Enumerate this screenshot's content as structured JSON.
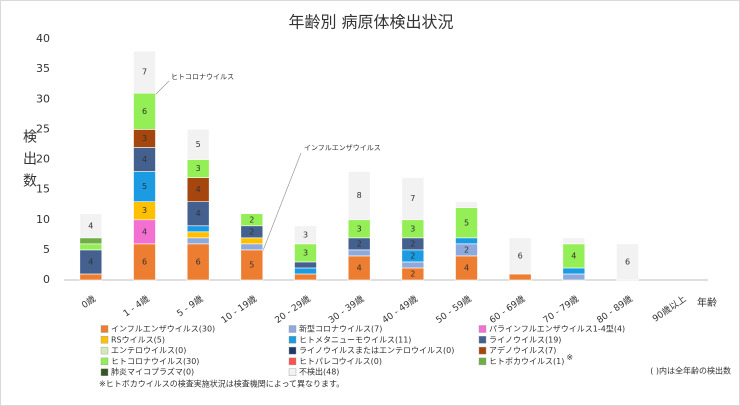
{
  "chart_data": {
    "type": "stacked-bar",
    "title": "年齢別 病原体検出状況",
    "y_label": "検出数",
    "x_label": "年齢",
    "categories": [
      "0歳",
      "1 - 4歳",
      "5 - 9歳",
      "10 - 19歳",
      "20 - 29歳",
      "30 - 39歳",
      "40 - 49歳",
      "50 - 59歳",
      "60 - 69歳",
      "70 - 79歳",
      "80 - 89歳",
      "90歳以上"
    ],
    "ylim": [
      0,
      40
    ],
    "yticks": [
      0,
      5,
      10,
      15,
      20,
      25,
      30,
      35,
      40
    ],
    "series": [
      {
        "name": "インフルエンザウイルス(30)",
        "color": "#ED7D31",
        "values": [
          1,
          6,
          6,
          5,
          1,
          4,
          2,
          4,
          1,
          0,
          0,
          0
        ]
      },
      {
        "name": "新型コロナウイルス(7)",
        "color": "#8EA9DB",
        "values": [
          0,
          0,
          1,
          1,
          0,
          1,
          1,
          2,
          0,
          1,
          0,
          0
        ]
      },
      {
        "name": "パラインフルエンザウイルス1-4型(4)",
        "color": "#F36FD1",
        "values": [
          0,
          4,
          0,
          0,
          0,
          0,
          0,
          0,
          0,
          0,
          0,
          0
        ]
      },
      {
        "name": "RSウイルス(5)",
        "color": "#FFC000",
        "values": [
          0,
          3,
          1,
          1,
          0,
          0,
          0,
          0,
          0,
          0,
          0,
          0
        ]
      },
      {
        "name": "ヒトメタニューモウイルス(11)",
        "color": "#1B9CE2",
        "values": [
          0,
          5,
          1,
          0,
          1,
          0,
          2,
          1,
          0,
          1,
          0,
          0
        ]
      },
      {
        "name": "ライノウイルス(19)",
        "color": "#44608F",
        "values": [
          4,
          4,
          4,
          2,
          1,
          2,
          2,
          0,
          0,
          0,
          0,
          0
        ]
      },
      {
        "name": "エンテロウイルス(0)",
        "color": "#D5E8B8",
        "values": [
          0,
          0,
          0,
          0,
          0,
          0,
          0,
          0,
          0,
          0,
          0,
          0
        ]
      },
      {
        "name": "ライノウイルスまたはエンテロウイルス(0)",
        "color": "#1F3864",
        "values": [
          0,
          0,
          0,
          0,
          0,
          0,
          0,
          0,
          0,
          0,
          0,
          0
        ]
      },
      {
        "name": "アデノウイルス(7)",
        "color": "#A5460F",
        "values": [
          0,
          3,
          4,
          0,
          0,
          0,
          0,
          0,
          0,
          0,
          0,
          0
        ]
      },
      {
        "name": "ヒトコロナウイルス(30)",
        "color": "#94EE55",
        "values": [
          1,
          6,
          3,
          2,
          3,
          3,
          3,
          5,
          0,
          4,
          0,
          0
        ]
      },
      {
        "name": "ヒトパレコウイルス(0)",
        "color": "#FF5050",
        "values": [
          0,
          0,
          0,
          0,
          0,
          0,
          0,
          0,
          0,
          0,
          0,
          0
        ]
      },
      {
        "name": "ヒトボカウイルス(1)",
        "color": "#70AD47",
        "values": [
          1,
          0,
          0,
          0,
          0,
          0,
          0,
          0,
          0,
          0,
          0,
          0
        ]
      },
      {
        "name": "肺炎マイコプラズマ(0)",
        "color": "#375623",
        "values": [
          0,
          0,
          0,
          0,
          0,
          0,
          0,
          0,
          0,
          0,
          0,
          0
        ]
      },
      {
        "name": "不検出(48)",
        "color": "#F2F2F2",
        "values": [
          4,
          7,
          5,
          0,
          3,
          8,
          7,
          1,
          6,
          1,
          6,
          0
        ]
      }
    ],
    "legend_note": "※",
    "annotations": [
      "ヒトコロナウイルス",
      "インフルエンザウイルス"
    ],
    "footnote": "※ヒトボカウイルスの検査実施状況は検査機関によって異なります。",
    "count_note": "( )内は全年齢の検出数"
  }
}
